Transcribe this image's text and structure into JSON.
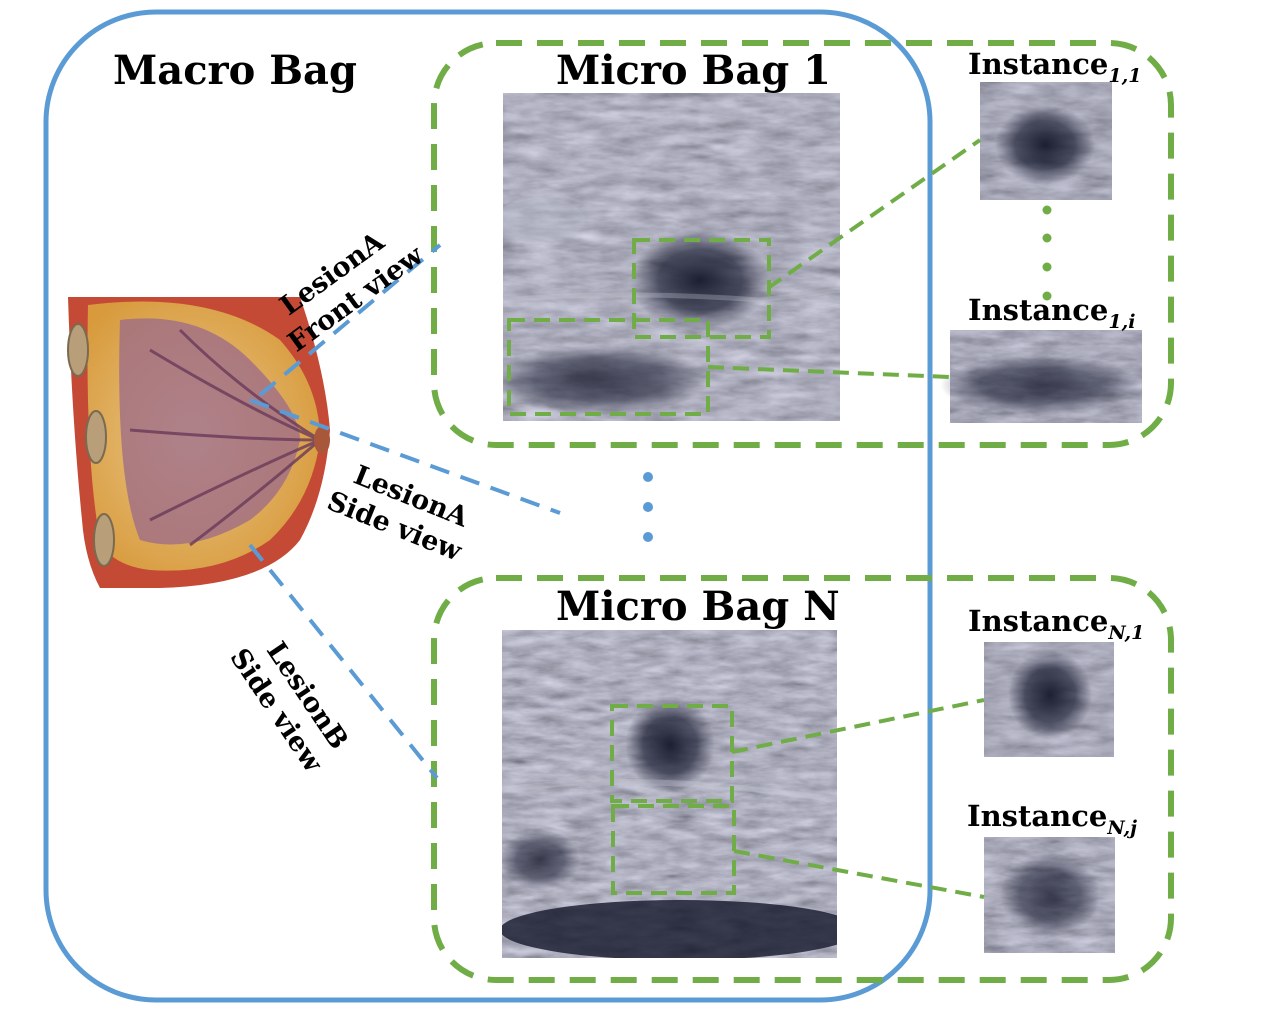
{
  "diagram": {
    "macro_bag_title": "Macro Bag",
    "micro_bag_1_title": "Micro Bag 1",
    "micro_bag_n_title": "Micro Bag N",
    "instance_prefix": "Instance",
    "instances": [
      {
        "subscript": "1,1"
      },
      {
        "subscript": "1,i"
      },
      {
        "subscript": "N,1"
      },
      {
        "subscript": "N,j"
      }
    ],
    "lesion_labels": [
      {
        "line1": "LesionA",
        "line2": "Front view"
      },
      {
        "line1": "LesionA",
        "line2": "Side view"
      },
      {
        "line1": "LesionB",
        "line2": "Side view"
      }
    ],
    "colors": {
      "macro_bag_border": "#5b9bd5",
      "micro_bag_border": "#70ad47",
      "lesion_connector": "#5b9bd5",
      "ultrasound_base": "#3a3f52",
      "breast_fat": "#e8a53a",
      "breast_tissue": "#9b6a8a",
      "breast_skin": "#c0503a"
    }
  }
}
